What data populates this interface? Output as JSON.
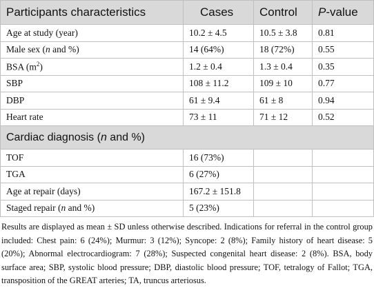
{
  "table": {
    "header": [
      [
        "Participants characteristics"
      ],
      [
        "Cases"
      ],
      [
        "Control"
      ],
      [
        {
          "text": "P",
          "style": "italic"
        },
        "-value"
      ]
    ],
    "rows": [
      [
        [
          "Age at study (year)"
        ],
        [
          "10.2 ± 4.5"
        ],
        [
          "10.5 ± 3.8"
        ],
        [
          "0.81"
        ]
      ],
      [
        [
          "Male sex (",
          {
            "text": "n",
            "style": "italic"
          },
          " and %)"
        ],
        [
          "14 (64%)"
        ],
        [
          "18 (72%)"
        ],
        [
          "0.55"
        ]
      ],
      [
        [
          "BSA (m",
          {
            "text": "2",
            "style": "sup"
          },
          ")"
        ],
        [
          "1.2 ± 0.4"
        ],
        [
          "1.3 ± 0.4"
        ],
        [
          "0.35"
        ]
      ],
      [
        [
          "SBP"
        ],
        [
          "108 ± 11.2"
        ],
        [
          "109 ± 10"
        ],
        [
          "0.77"
        ]
      ],
      [
        [
          "DBP"
        ],
        [
          "61 ± 9.4"
        ],
        [
          "61 ± 8"
        ],
        [
          "0.94"
        ]
      ],
      [
        [
          "Heart rate"
        ],
        [
          "73 ± 11"
        ],
        [
          "71 ± 12"
        ],
        [
          "0.52"
        ]
      ]
    ],
    "section": [
      "Cardiac diagnosis (",
      {
        "text": "n",
        "style": "italic"
      },
      " and %)"
    ],
    "rows2": [
      [
        [
          "TOF"
        ],
        [
          "16 (73%)"
        ]
      ],
      [
        [
          "TGA"
        ],
        [
          "6 (27%)"
        ]
      ],
      [
        [
          "Age at repair (days)"
        ],
        [
          "167.2 ± 151.8"
        ]
      ],
      [
        [
          "Staged repair (",
          {
            "text": "n",
            "style": "italic"
          },
          " and %)"
        ],
        [
          "5 (23%)"
        ]
      ]
    ],
    "footnote": "Results are displayed as mean ± SD unless otherwise described. Indications for referral in the control group included: Chest pain: 6 (24%); Murmur: 3 (12%); Syncope: 2 (8%); Family history of heart disease: 5 (20%); Abnormal electrocardiogram: 7 (28%); Suspected congenital heart disease: 2 (8%). BSA, body surface area; SBP, systolic blood pressure; DBP, diastolic blood pressure; TOF, tetralogy of Fallot; TGA, transposition of the GREAT arteries; TA, truncus arteriosus."
  }
}
